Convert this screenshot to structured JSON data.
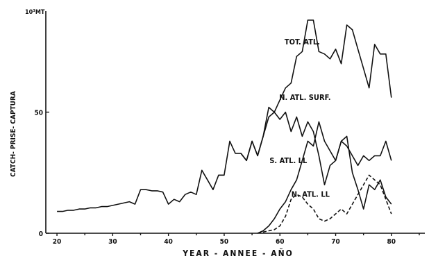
{
  "chart_data": {
    "type": "line",
    "unit_label": "10³MT",
    "xlabel": "YEAR -  ANNEE  -  AÑO",
    "ylabel": "CATCH- PRISE- CAPTURA",
    "xlim": [
      18,
      86
    ],
    "ylim": [
      0,
      90
    ],
    "x_ticks": [
      20,
      30,
      40,
      50,
      60,
      70,
      80
    ],
    "y_ticks": [
      0,
      50
    ],
    "grid": false,
    "series": [
      {
        "name": "TOT. ATL.",
        "style": "solid",
        "x": [
          20,
          21,
          22,
          23,
          24,
          25,
          26,
          27,
          28,
          29,
          30,
          31,
          32,
          33,
          34,
          35,
          36,
          37,
          38,
          39,
          40,
          41,
          42,
          43,
          44,
          45,
          46,
          47,
          48,
          49,
          50,
          51,
          52,
          53,
          54,
          55,
          56,
          57,
          58,
          59,
          60,
          61,
          62,
          63,
          64,
          65,
          66,
          67,
          68,
          69,
          70,
          71,
          72,
          73,
          74,
          75,
          76,
          77,
          78,
          79,
          80
        ],
        "values": [
          9,
          9,
          9.5,
          9.5,
          10,
          10,
          10.5,
          10.5,
          11,
          11,
          11.5,
          12,
          12.5,
          13,
          12,
          18,
          18,
          17.5,
          17.5,
          17,
          12,
          14,
          13,
          16,
          17,
          16,
          26,
          22,
          18,
          24,
          24,
          38,
          33,
          33,
          30,
          38,
          32,
          40,
          52,
          50,
          55,
          60,
          62,
          73,
          75,
          88,
          88,
          75,
          74,
          72,
          76,
          70,
          86,
          84,
          76,
          68,
          60,
          78,
          74,
          74,
          56
        ]
      },
      {
        "name": "N. ATL. SURF.",
        "style": "solid",
        "x": [
          53,
          54,
          55,
          56,
          57,
          58,
          59,
          60,
          61,
          62,
          63,
          64,
          65,
          66,
          67,
          68,
          69,
          70,
          71,
          72,
          73,
          74,
          75,
          76,
          77,
          78,
          79,
          80
        ],
        "values": [
          33,
          30,
          38,
          32,
          40,
          48,
          50,
          47,
          50,
          42,
          48,
          40,
          46,
          42,
          32,
          20,
          28,
          30,
          38,
          40,
          25,
          18,
          10,
          20,
          18,
          22,
          15,
          12
        ]
      },
      {
        "name": "S. ATL. LL",
        "style": "solid",
        "x": [
          56,
          57,
          58,
          59,
          60,
          61,
          62,
          63,
          64,
          65,
          66,
          67,
          68,
          69,
          70,
          71,
          72,
          73,
          74,
          75,
          76,
          77,
          78,
          79,
          80
        ],
        "values": [
          0,
          1,
          3,
          6,
          10,
          13,
          18,
          22,
          30,
          38,
          36,
          46,
          38,
          34,
          30,
          38,
          36,
          32,
          28,
          32,
          30,
          32,
          32,
          38,
          30
        ]
      },
      {
        "name": "N. ATL. LL",
        "style": "dashed",
        "x": [
          56,
          57,
          58,
          59,
          60,
          61,
          62,
          63,
          64,
          65,
          66,
          67,
          68,
          69,
          70,
          71,
          72,
          73,
          74,
          75,
          76,
          77,
          78,
          79,
          80
        ],
        "values": [
          0,
          0.5,
          1,
          1.5,
          3,
          7,
          14,
          16,
          15,
          12,
          10,
          6,
          5,
          6,
          8,
          10,
          8,
          12,
          16,
          20,
          24,
          22,
          20,
          14,
          8
        ]
      }
    ],
    "annotations": [
      {
        "text": "TOT. ATL.",
        "x": 64,
        "y": 78
      },
      {
        "text": "N. ATL. SURF.",
        "x": 64.5,
        "y": 55
      },
      {
        "text": "S. ATL. LL",
        "x": 61.5,
        "y": 29
      },
      {
        "text": "N. ATL. LL",
        "x": 65.5,
        "y": 15
      }
    ]
  }
}
